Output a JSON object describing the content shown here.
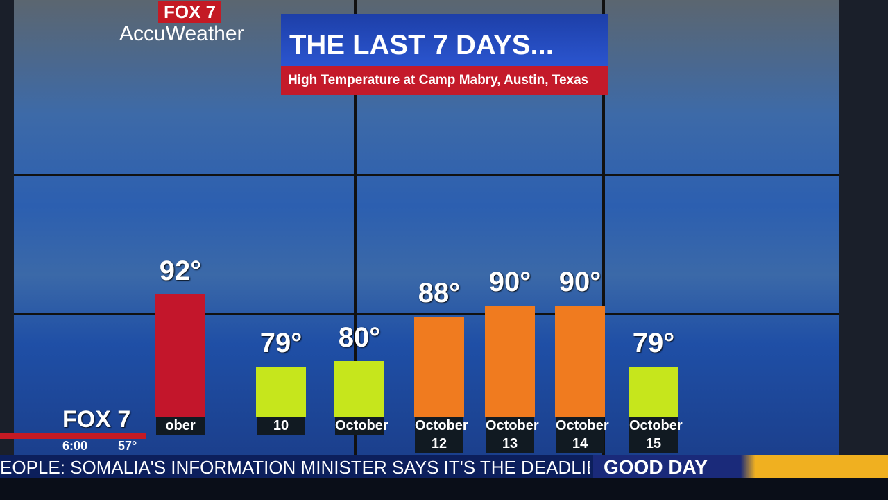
{
  "header": {
    "logo": "FOX 7",
    "brand": "AccuWeather",
    "title": "THE LAST 7 DAYS...",
    "subtitle": "High Temperature at Camp Mabry, Austin, Texas"
  },
  "chart_data": {
    "type": "bar",
    "categories": [
      "ober",
      "10",
      "October",
      "October 12",
      "October 13",
      "October 14",
      "October 15"
    ],
    "values": [
      92,
      79,
      80,
      88,
      90,
      90,
      79
    ],
    "value_labels": [
      "92°",
      "79°",
      "80°",
      "88°",
      "90°",
      "90°",
      "79°"
    ],
    "colors": [
      "#c3162b",
      "#c6e61c",
      "#c6e61c",
      "#f07b1f",
      "#f07b1f",
      "#f07b1f",
      "#c6e61c"
    ]
  },
  "bug": {
    "logo": "FOX 7",
    "time": "6:00",
    "temp": "57°"
  },
  "ticker": {
    "text": "EOPLE: SOMALIA'S INFORMATION MINISTER SAYS IT'S THE DEADLIES",
    "show": "GOOD DAY"
  }
}
